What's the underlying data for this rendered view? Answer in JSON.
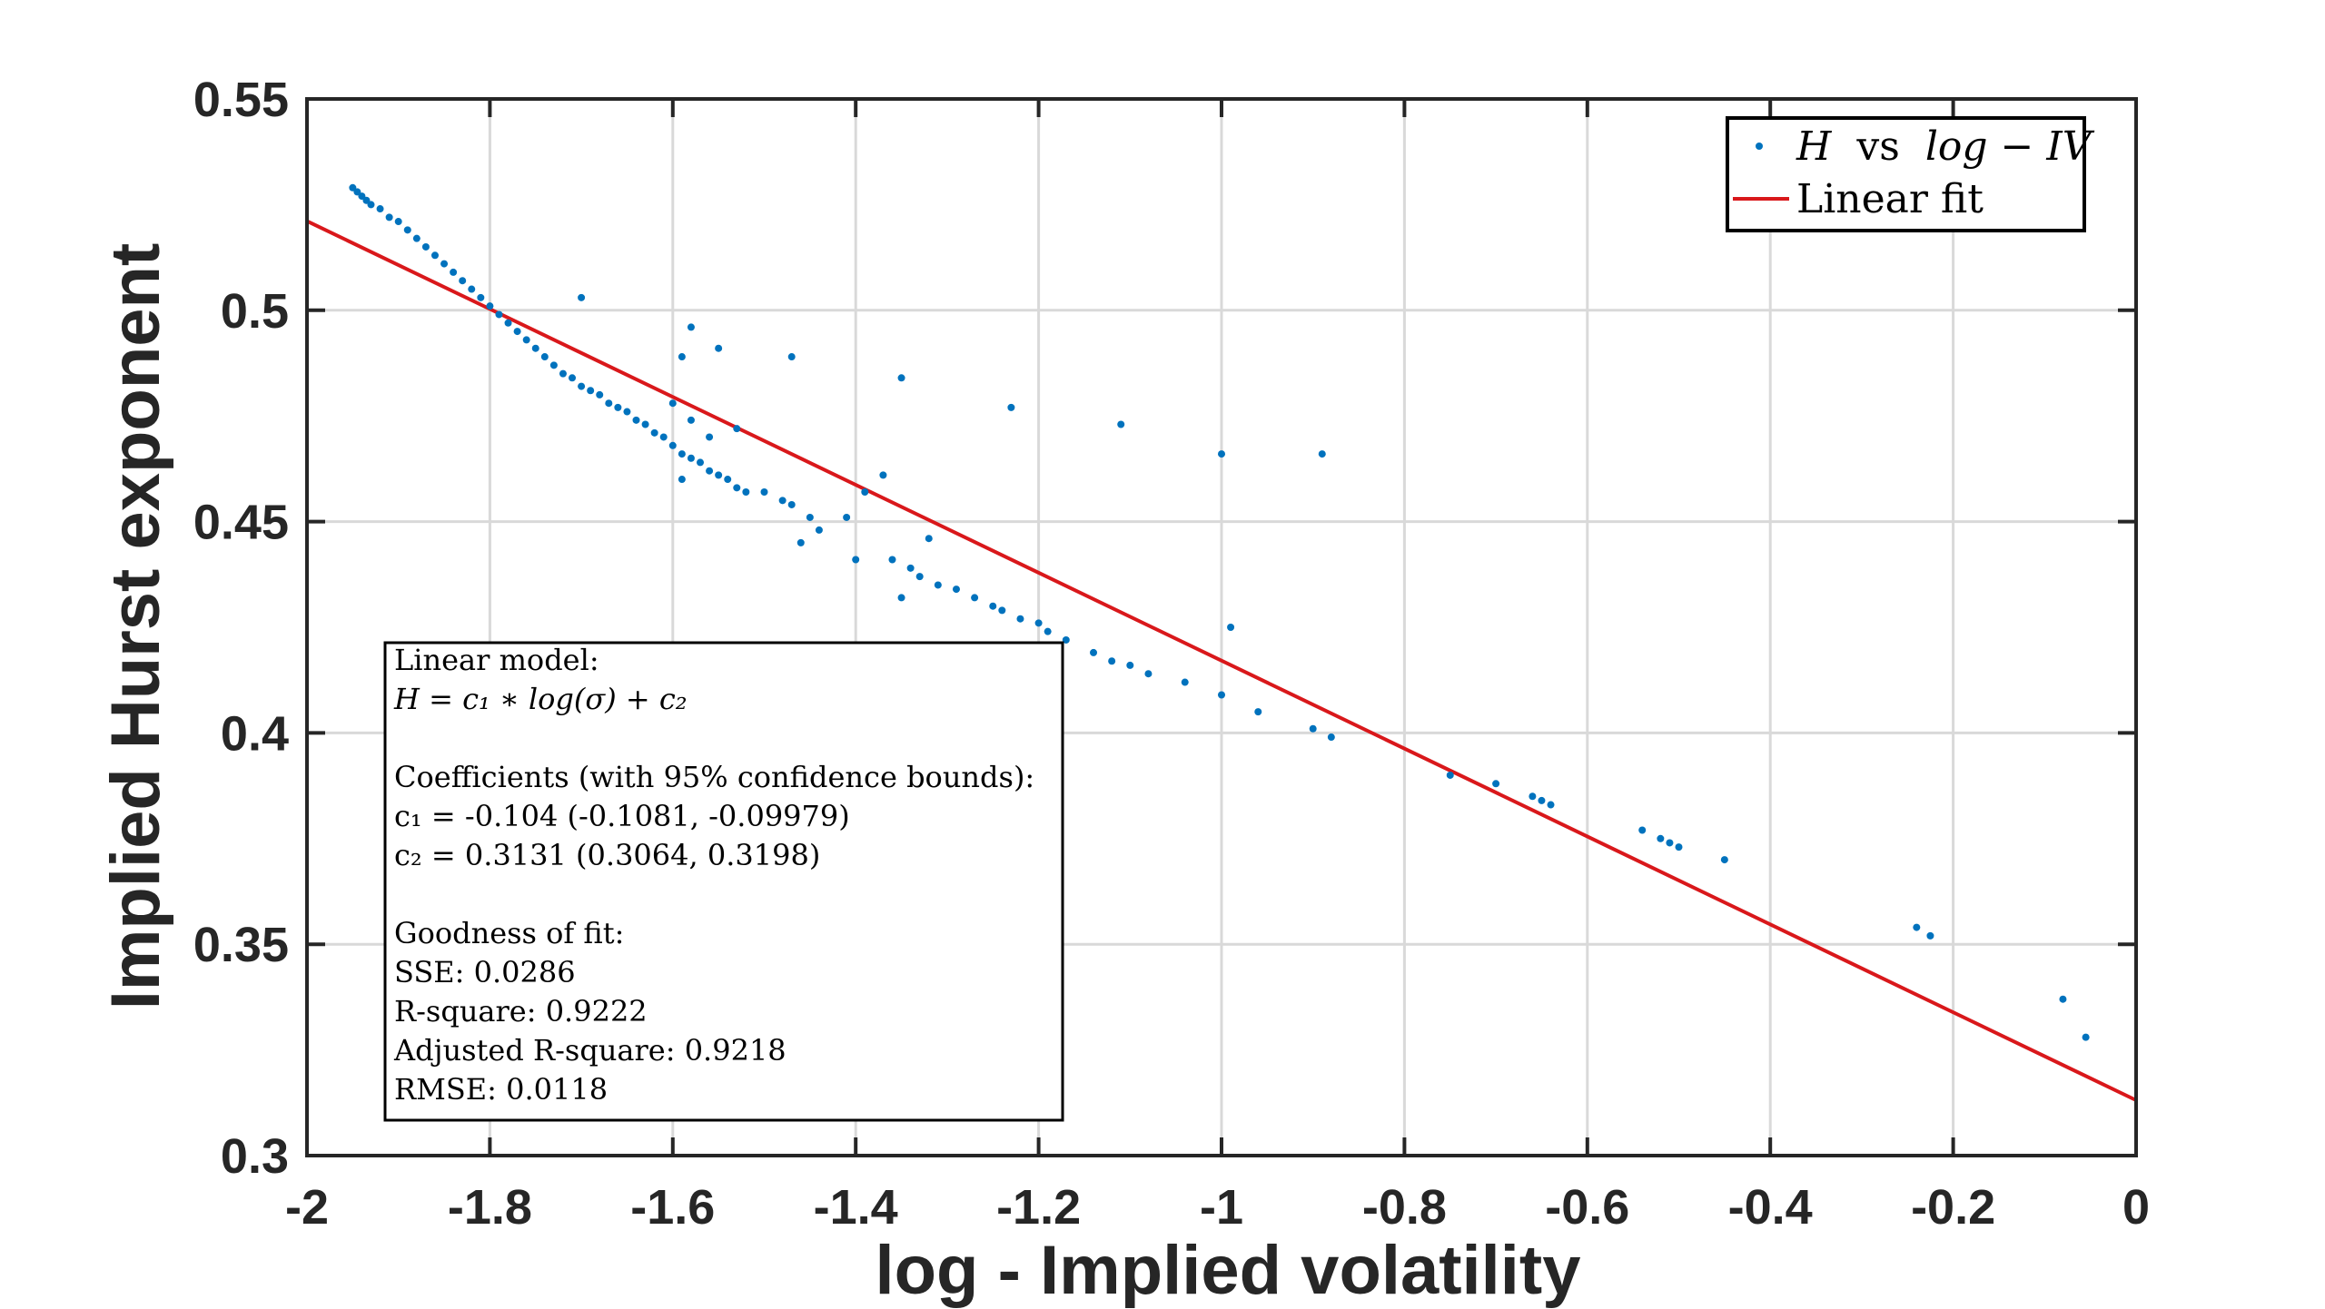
{
  "chart_data": {
    "type": "scatter",
    "title": "",
    "xlabel": "log - Implied volatility",
    "ylabel": "Implied Hurst exponent",
    "xlim": [
      -2,
      0
    ],
    "ylim": [
      0.3,
      0.55
    ],
    "grid": true,
    "x_ticks": [
      -2,
      -1.8,
      -1.6,
      -1.4,
      -1.2,
      -1,
      -0.8,
      -0.6,
      -0.4,
      -0.2,
      0
    ],
    "x_tick_labels": [
      "-2",
      "-1.8",
      "-1.6",
      "-1.4",
      "-1.2",
      "-1",
      "-0.8",
      "-0.6",
      "-0.4",
      "-0.2",
      "0"
    ],
    "y_ticks": [
      0.3,
      0.35,
      0.4,
      0.45,
      0.5,
      0.55
    ],
    "y_tick_labels": [
      "0.3",
      "0.35",
      "0.4",
      "0.45",
      "0.5",
      "0.55"
    ],
    "legend_position": "top-right",
    "series": [
      {
        "name": "H vs log - IV",
        "type": "scatter",
        "color": "#0072BD",
        "points": [
          [
            -1.95,
            0.529
          ],
          [
            -1.945,
            0.528
          ],
          [
            -1.94,
            0.527
          ],
          [
            -1.935,
            0.526
          ],
          [
            -1.93,
            0.525
          ],
          [
            -1.92,
            0.524
          ],
          [
            -1.91,
            0.522
          ],
          [
            -1.9,
            0.521
          ],
          [
            -1.89,
            0.519
          ],
          [
            -1.88,
            0.517
          ],
          [
            -1.87,
            0.515
          ],
          [
            -1.86,
            0.513
          ],
          [
            -1.85,
            0.511
          ],
          [
            -1.84,
            0.509
          ],
          [
            -1.83,
            0.507
          ],
          [
            -1.82,
            0.505
          ],
          [
            -1.81,
            0.503
          ],
          [
            -1.8,
            0.501
          ],
          [
            -1.79,
            0.499
          ],
          [
            -1.78,
            0.497
          ],
          [
            -1.77,
            0.495
          ],
          [
            -1.76,
            0.493
          ],
          [
            -1.75,
            0.491
          ],
          [
            -1.74,
            0.489
          ],
          [
            -1.73,
            0.487
          ],
          [
            -1.72,
            0.485
          ],
          [
            -1.71,
            0.484
          ],
          [
            -1.7,
            0.482
          ],
          [
            -1.69,
            0.481
          ],
          [
            -1.68,
            0.48
          ],
          [
            -1.67,
            0.478
          ],
          [
            -1.66,
            0.477
          ],
          [
            -1.65,
            0.476
          ],
          [
            -1.64,
            0.474
          ],
          [
            -1.63,
            0.473
          ],
          [
            -1.62,
            0.471
          ],
          [
            -1.61,
            0.47
          ],
          [
            -1.6,
            0.468
          ],
          [
            -1.59,
            0.466
          ],
          [
            -1.58,
            0.465
          ],
          [
            -1.57,
            0.464
          ],
          [
            -1.56,
            0.462
          ],
          [
            -1.55,
            0.461
          ],
          [
            -1.54,
            0.46
          ],
          [
            -1.53,
            0.458
          ],
          [
            -1.52,
            0.457
          ],
          [
            -1.5,
            0.457
          ],
          [
            -1.48,
            0.455
          ],
          [
            -1.47,
            0.454
          ],
          [
            -1.45,
            0.451
          ],
          [
            -1.44,
            0.448
          ],
          [
            -1.46,
            0.445
          ],
          [
            -1.4,
            0.441
          ],
          [
            -1.36,
            0.441
          ],
          [
            -1.34,
            0.439
          ],
          [
            -1.33,
            0.437
          ],
          [
            -1.31,
            0.435
          ],
          [
            -1.29,
            0.434
          ],
          [
            -1.27,
            0.432
          ],
          [
            -1.25,
            0.43
          ],
          [
            -1.24,
            0.429
          ],
          [
            -1.22,
            0.427
          ],
          [
            -1.2,
            0.426
          ],
          [
            -1.19,
            0.424
          ],
          [
            -1.17,
            0.422
          ],
          [
            -1.14,
            0.419
          ],
          [
            -1.12,
            0.417
          ],
          [
            -1.1,
            0.416
          ],
          [
            -1.08,
            0.414
          ],
          [
            -1.04,
            0.412
          ],
          [
            -1.0,
            0.409
          ],
          [
            -0.96,
            0.405
          ],
          [
            -0.9,
            0.401
          ],
          [
            -0.88,
            0.399
          ],
          [
            -0.75,
            0.39
          ],
          [
            -0.7,
            0.388
          ],
          [
            -0.66,
            0.385
          ],
          [
            -0.65,
            0.384
          ],
          [
            -0.64,
            0.383
          ],
          [
            -0.54,
            0.377
          ],
          [
            -0.52,
            0.375
          ],
          [
            -0.51,
            0.374
          ],
          [
            -0.5,
            0.373
          ],
          [
            -0.45,
            0.37
          ],
          [
            -0.24,
            0.354
          ],
          [
            -0.225,
            0.352
          ],
          [
            -0.08,
            0.337
          ],
          [
            -0.055,
            0.328
          ],
          [
            -1.7,
            0.503
          ],
          [
            -1.58,
            0.496
          ],
          [
            -1.59,
            0.489
          ],
          [
            -1.55,
            0.491
          ],
          [
            -1.47,
            0.489
          ],
          [
            -1.35,
            0.484
          ],
          [
            -1.23,
            0.477
          ],
          [
            -1.11,
            0.473
          ],
          [
            -1.0,
            0.466
          ],
          [
            -0.89,
            0.466
          ],
          [
            -1.39,
            0.457
          ],
          [
            -1.37,
            0.461
          ],
          [
            -1.32,
            0.446
          ],
          [
            -0.99,
            0.425
          ],
          [
            -1.35,
            0.432
          ],
          [
            -1.6,
            0.478
          ],
          [
            -1.58,
            0.474
          ],
          [
            -1.56,
            0.47
          ],
          [
            -1.53,
            0.472
          ],
          [
            -1.59,
            0.46
          ],
          [
            -1.41,
            0.451
          ]
        ]
      },
      {
        "name": "Linear fit",
        "type": "line",
        "color": "#D9181B",
        "intercept": 0.3131,
        "slope": -0.104
      }
    ],
    "legend": {
      "entries": [
        {
          "kind": "marker",
          "math_left": "H",
          "mid": "vs",
          "math_right": "log − IV"
        },
        {
          "kind": "line",
          "label": "Linear fit"
        }
      ]
    },
    "annotation": {
      "lines": [
        "Linear model:",
        "H = c₁ ∗ log(σ) + c₂",
        "",
        "Coefficients (with 95% confidence bounds):",
        "c₁ = -0.104 (-0.1081, -0.09979)",
        "c₂ = 0.3131 (0.3064, 0.3198)",
        "",
        "Goodness of fit:",
        "SSE: 0.0286",
        "R-square: 0.9222",
        "Adjusted R-square: 0.9218",
        "RMSE: 0.0118"
      ]
    }
  }
}
